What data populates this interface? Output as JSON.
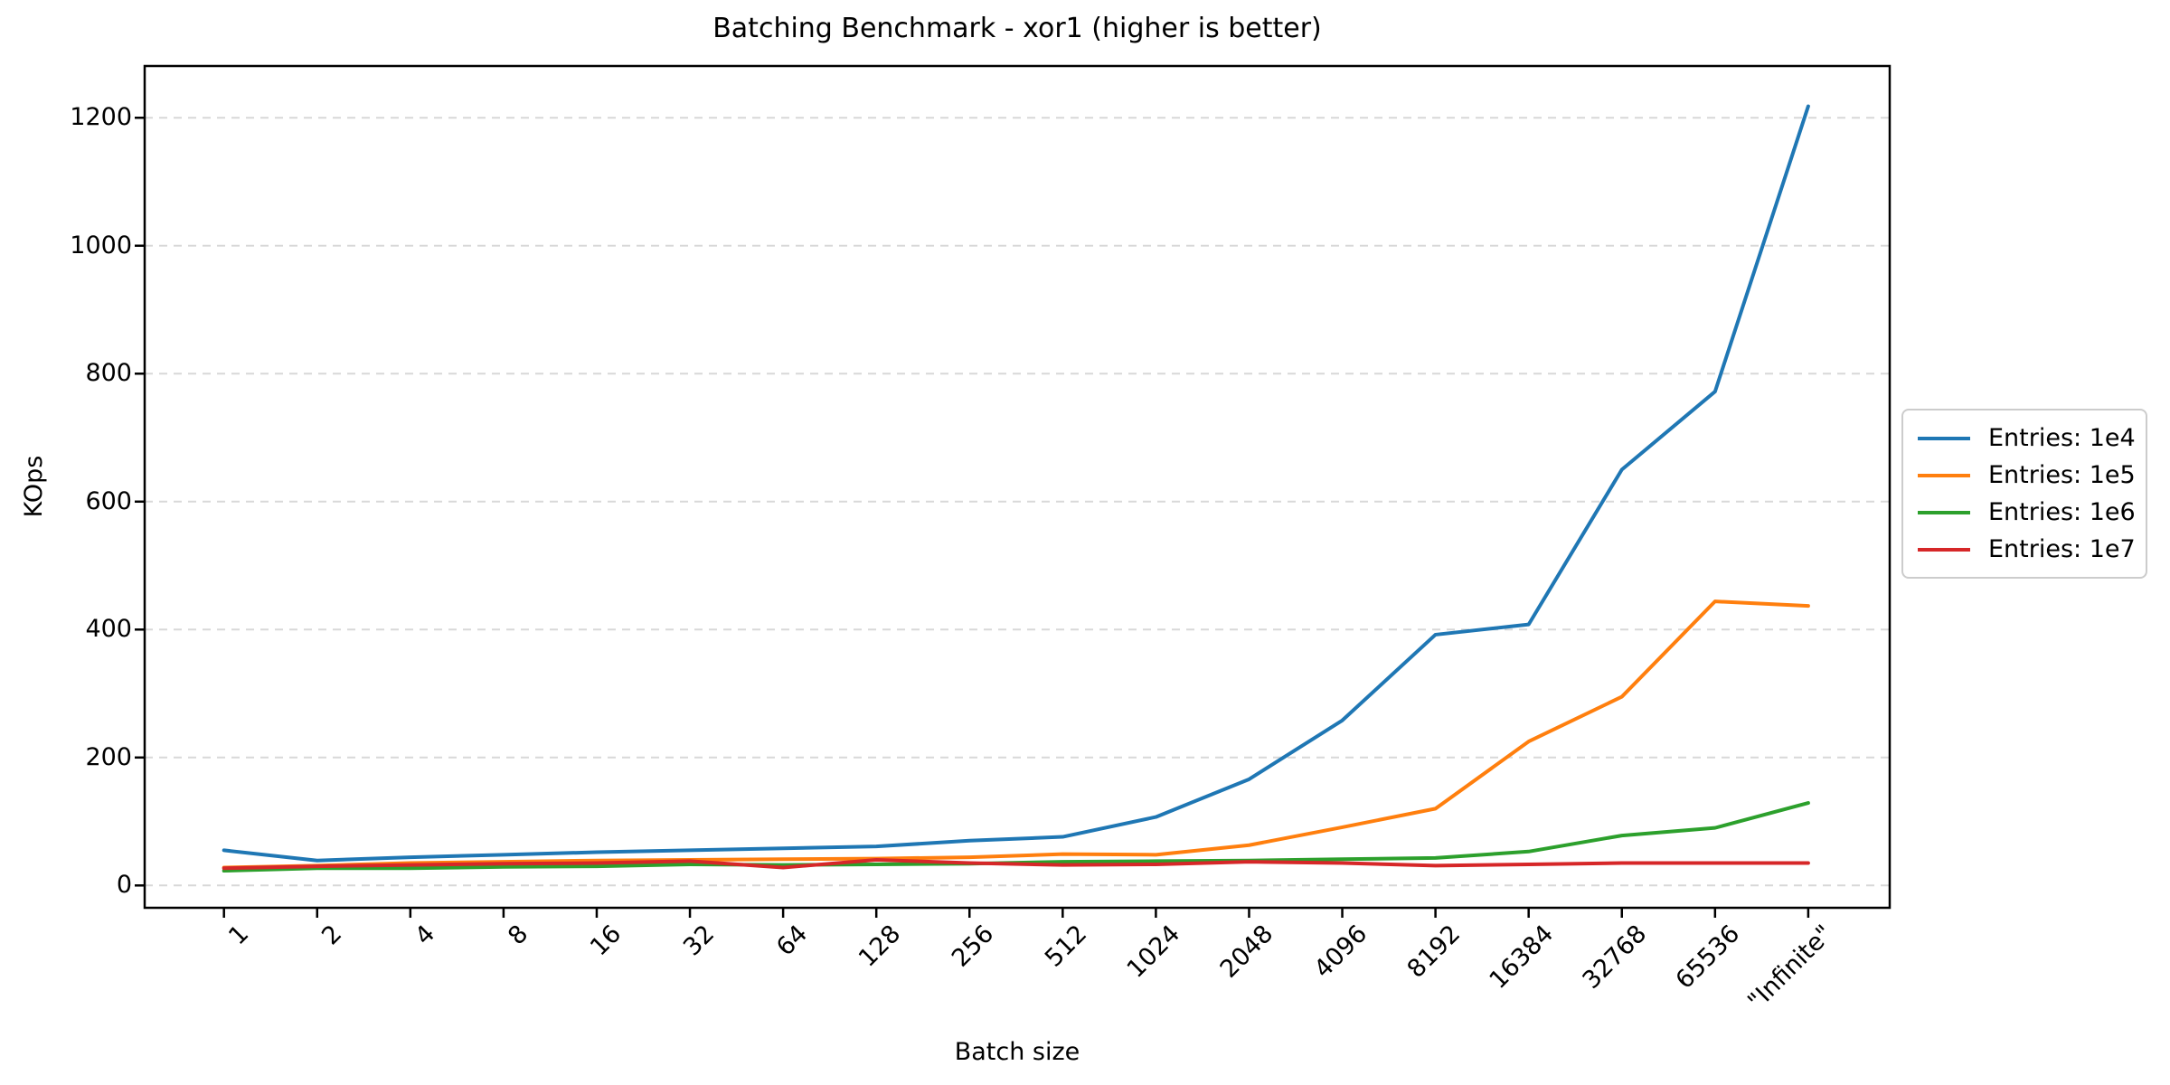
{
  "chart_data": {
    "type": "line",
    "title": "Batching Benchmark - xor1 (higher is better)",
    "xlabel": "Batch size",
    "ylabel": "KOps",
    "categories": [
      "1",
      "2",
      "4",
      "8",
      "16",
      "32",
      "64",
      "128",
      "256",
      "512",
      "1024",
      "2048",
      "4096",
      "8192",
      "16384",
      "32768",
      "65536",
      "\"Infinite\""
    ],
    "y_ticks": [
      0,
      200,
      400,
      600,
      800,
      1000,
      1200
    ],
    "ylim": [
      -35,
      1285
    ],
    "grid": "horizontal dashed gridlines at each y tick",
    "legend_position": "outside center-right",
    "series": [
      {
        "name": "Entries: 1e4",
        "color": "#1f77b4",
        "values": [
          55,
          39,
          44,
          48,
          52,
          55,
          58,
          61,
          70,
          76,
          107,
          166,
          258,
          392,
          408,
          650,
          772,
          1218
        ]
      },
      {
        "name": "Entries: 1e5",
        "color": "#ff7f0e",
        "values": [
          28,
          31,
          35,
          37,
          39,
          40,
          41,
          42,
          44,
          49,
          48,
          63,
          91,
          120,
          225,
          295,
          444,
          437
        ]
      },
      {
        "name": "Entries: 1e6",
        "color": "#2ca02c",
        "values": [
          23,
          27,
          27,
          29,
          30,
          33,
          32,
          33,
          34,
          37,
          38,
          39,
          41,
          43,
          53,
          78,
          90,
          129
        ]
      },
      {
        "name": "Entries: 1e7",
        "color": "#d62728",
        "values": [
          27,
          30,
          32,
          34,
          35,
          38,
          28,
          40,
          35,
          32,
          33,
          37,
          35,
          31,
          33,
          35,
          35,
          35
        ]
      }
    ],
    "axis_color": "#000000",
    "gridline_color": "#d8d8d8",
    "background_color": "#ffffff"
  }
}
